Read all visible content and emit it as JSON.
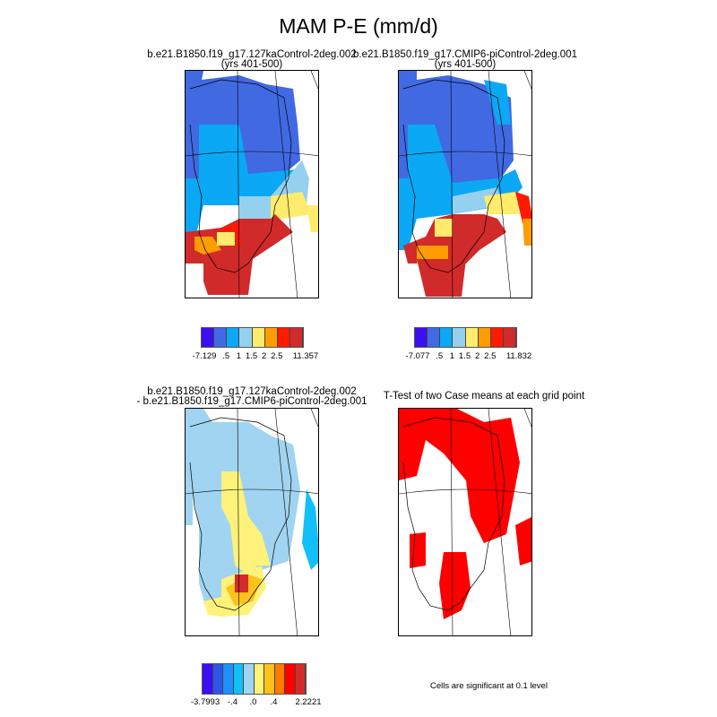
{
  "title": "MAM P-E (mm/d)",
  "panels": [
    {
      "title_line1": "b.e21.B1850.f19_g17.127kaControl-2deg.002",
      "title_line2": "(yrs 401-500)"
    },
    {
      "title_line1": "b.e21.B1850.f19_g17.CMIP6-piControl-2deg.001",
      "title_line2": "(yrs 401-500)"
    },
    {
      "title_line1": "b.e21.B1850.f19_g17.127kaControl-2deg.002",
      "title_line2": "- b.e21.B1850.f19_g17.CMIP6-piControl-2deg.001"
    },
    {
      "title_line1": "T-Test of two Case means at each grid point",
      "note": "Cells are significant at 0.1 level"
    }
  ],
  "colorbars": [
    {
      "colors": [
        "#3b0ff0",
        "#4169e1",
        "#0aa8f5",
        "#96d0ef",
        "#ffec6c",
        "#ff9c00",
        "#ff1a00",
        "#d12a2a"
      ],
      "labels": [
        "-7.129",
        ".5",
        "1",
        "1.5",
        "2",
        "2.5",
        "11.357"
      ]
    },
    {
      "colors": [
        "#3b0ff0",
        "#4169e1",
        "#0aa8f5",
        "#96d0ef",
        "#ffec6c",
        "#ff9c00",
        "#ff1a00",
        "#d12a2a"
      ],
      "labels": [
        "-7.077",
        ".5",
        "1",
        "1.5",
        "2",
        "2.5",
        "11.832"
      ]
    },
    {
      "colors": [
        "#3b0ff0",
        "#2e55e6",
        "#1e8fff",
        "#11c0f8",
        "#a0d4f0",
        "#fff27a",
        "#ffc21a",
        "#ff7a00",
        "#ff0000",
        "#d42a2a"
      ],
      "labels": [
        "-3.7993",
        "-.4",
        ".0",
        ".4",
        "2.2221"
      ]
    }
  ],
  "significance_color": "#ff0000"
}
